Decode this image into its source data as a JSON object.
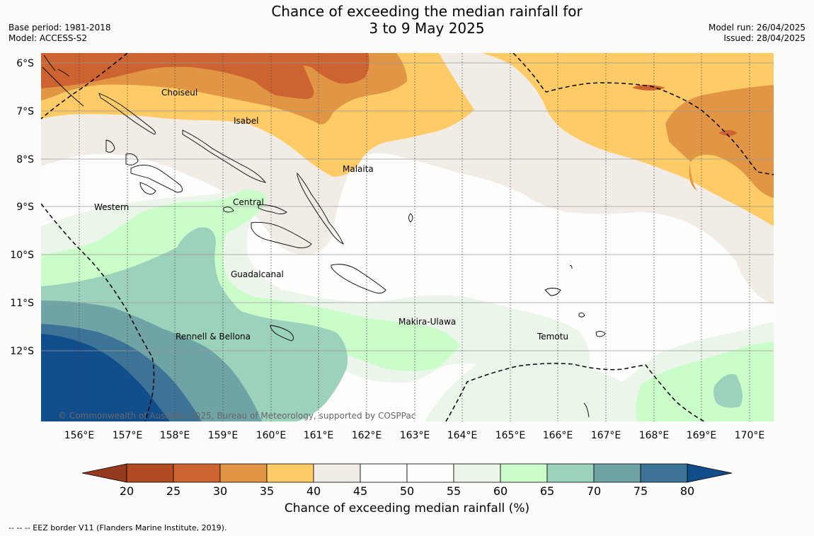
{
  "header": {
    "title_line1": "Chance of exceeding the median rainfall for",
    "title_line2": "3 to 9 May 2025",
    "base_period": "Base period: 1981-2018",
    "model": "Model: ACCESS-S2",
    "model_run": "Model run: 26/04/2025",
    "issued": "Issued: 28/04/2025"
  },
  "map": {
    "lat_labels": [
      "6°S",
      "7°S",
      "8°S",
      "9°S",
      "10°S",
      "11°S",
      "12°S"
    ],
    "lon_labels": [
      "156°E",
      "157°E",
      "158°E",
      "159°E",
      "160°E",
      "161°E",
      "162°E",
      "163°E",
      "164°E",
      "165°E",
      "166°E",
      "167°E",
      "168°E",
      "169°E",
      "170°E"
    ],
    "place_labels": {
      "choiseul": "Choiseul",
      "isabel": "Isabel",
      "malaita": "Malaita",
      "western": "Western",
      "central": "Central",
      "guadalcanal": "Guadalcanal",
      "makira_ulawa": "Makira-Ulawa",
      "rennell_bellona": "Rennell & Bellona",
      "temotu": "Temotu"
    },
    "copyright": "© Commonwealth of Australia 2025, Bureau of Meteorology, supported by COSPPac"
  },
  "colorbar": {
    "ticks": [
      "20",
      "25",
      "30",
      "35",
      "40",
      "45",
      "50",
      "55",
      "60",
      "65",
      "70",
      "75",
      "80"
    ],
    "colors": [
      "#b24a24",
      "#cc6330",
      "#e19645",
      "#fecb66",
      "#f2ece7",
      "#fdfdfb",
      "#fdfdfb",
      "#ebf5ea",
      "#cbfdcb",
      "#9cd1bb",
      "#6fa3a6",
      "#3d7397"
    ],
    "under_color": "#963a1e",
    "over_color": "#134e8c",
    "title": "Chance of exceeding median rainfall (%)"
  },
  "footer": {
    "legend": "--  --  -- EEZ border V11 (Flanders Marine Institute, 2019)."
  }
}
